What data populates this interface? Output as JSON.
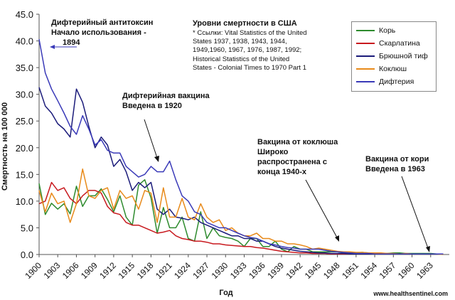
{
  "chart_data": {
    "type": "line",
    "title": "Уровни смертности в США",
    "xlabel": "Год",
    "ylabel": "Смертность на 100 000",
    "ylim": [
      0,
      45
    ],
    "yticks": [
      "0.0",
      "5.0",
      "10.0",
      "15.0",
      "20.0",
      "25.0",
      "30.0",
      "35.0",
      "40.0",
      "45.0"
    ],
    "xlim": [
      1900,
      1966
    ],
    "xticks": [
      "1900",
      "1903",
      "1906",
      "1909",
      "1912",
      "1915",
      "1918",
      "1921",
      "1924",
      "1927",
      "1930",
      "1933",
      "1936",
      "1939",
      "1942",
      "1945",
      "1948",
      "1951",
      "1954",
      "1957",
      "1960",
      "1963"
    ],
    "series": [
      {
        "name": "Корь",
        "color": "#2e8b2e",
        "x": [
          1900,
          1901,
          1902,
          1903,
          1904,
          1905,
          1906,
          1907,
          1908,
          1909,
          1910,
          1911,
          1912,
          1913,
          1914,
          1915,
          1916,
          1917,
          1918,
          1919,
          1920,
          1921,
          1922,
          1923,
          1924,
          1925,
          1926,
          1927,
          1928,
          1929,
          1930,
          1931,
          1932,
          1933,
          1934,
          1935,
          1936,
          1937,
          1938,
          1939,
          1940,
          1941,
          1942,
          1943,
          1944,
          1945,
          1946,
          1947,
          1948,
          1949,
          1950,
          1951,
          1952,
          1953,
          1954,
          1955,
          1956,
          1957,
          1958,
          1959,
          1960,
          1961,
          1962,
          1963,
          1964,
          1965
        ],
        "y": [
          13.3,
          7.5,
          9.6,
          8.5,
          9.5,
          7.6,
          12.8,
          9.0,
          11.0,
          11.0,
          12.3,
          10.3,
          8.0,
          11.0,
          7.0,
          5.5,
          13.0,
          14.0,
          10.6,
          4.0,
          8.8,
          5.0,
          5.0,
          7.0,
          3.0,
          2.5,
          8.0,
          3.0,
          5.0,
          3.5,
          3.2,
          3.0,
          2.5,
          1.5,
          3.0,
          3.0,
          1.5,
          1.5,
          2.5,
          1.0,
          0.5,
          1.5,
          1.0,
          1.0,
          0.5,
          0.5,
          0.5,
          0.5,
          0.5,
          0.3,
          0.3,
          0.3,
          0.4,
          0.3,
          0.3,
          0.2,
          0.2,
          0.3,
          0.3,
          0.2,
          0.2,
          0.2,
          0.2,
          0.2,
          0.1,
          0.1
        ]
      },
      {
        "name": "Скарлатина",
        "color": "#c8191e",
        "x": [
          1900,
          1901,
          1902,
          1903,
          1904,
          1905,
          1906,
          1907,
          1908,
          1909,
          1910,
          1911,
          1912,
          1913,
          1914,
          1915,
          1916,
          1917,
          1918,
          1919,
          1920,
          1921,
          1922,
          1923,
          1924,
          1925,
          1926,
          1927,
          1928,
          1929,
          1930,
          1931,
          1932,
          1933,
          1934,
          1935,
          1936,
          1937,
          1938,
          1939,
          1940,
          1941,
          1942,
          1943,
          1944,
          1945,
          1946,
          1947,
          1948,
          1949,
          1950,
          1951,
          1952,
          1953,
          1954,
          1955,
          1956,
          1957,
          1958,
          1959,
          1960,
          1961,
          1962,
          1963,
          1964,
          1965
        ],
        "y": [
          9.5,
          10.0,
          13.5,
          12.0,
          12.5,
          10.5,
          9.5,
          11.0,
          12.0,
          12.0,
          11.5,
          9.0,
          7.8,
          7.5,
          6.0,
          5.5,
          5.5,
          5.0,
          4.5,
          4.0,
          4.2,
          4.5,
          3.5,
          3.0,
          2.8,
          2.5,
          2.5,
          2.3,
          2.0,
          2.0,
          1.8,
          1.7,
          1.6,
          1.5,
          1.5,
          1.3,
          1.2,
          1.0,
          0.8,
          0.6,
          0.5,
          0.4,
          0.3,
          0.3,
          0.2,
          0.2,
          0.2,
          0.1,
          0.1,
          0.1,
          0.1,
          0.1,
          0.1,
          0.1,
          0.1,
          0.1,
          0.1,
          0.1,
          0.1,
          0.1,
          0.1,
          0.1,
          0.1,
          0.1,
          0.1,
          0.1
        ]
      },
      {
        "name": "Брюшной тиф",
        "color": "#1b1b7a",
        "x": [
          1900,
          1901,
          1902,
          1903,
          1904,
          1905,
          1906,
          1907,
          1908,
          1909,
          1910,
          1911,
          1912,
          1913,
          1914,
          1915,
          1916,
          1917,
          1918,
          1919,
          1920,
          1921,
          1922,
          1923,
          1924,
          1925,
          1926,
          1927,
          1928,
          1929,
          1930,
          1931,
          1932,
          1933,
          1934,
          1935,
          1936,
          1937,
          1938,
          1939,
          1940,
          1941,
          1942,
          1943,
          1944,
          1945,
          1946,
          1947,
          1948,
          1949,
          1950,
          1951,
          1952,
          1953,
          1954,
          1955,
          1956,
          1957,
          1958,
          1959,
          1960,
          1961,
          1962,
          1963,
          1964,
          1965
        ],
        "y": [
          31.3,
          27.8,
          26.5,
          24.5,
          23.5,
          22.0,
          31.0,
          28.5,
          24.0,
          20.0,
          22.0,
          20.5,
          16.5,
          17.8,
          15.5,
          12.0,
          13.5,
          12.5,
          13.5,
          8.5,
          7.5,
          8.5,
          7.0,
          6.8,
          6.5,
          7.0,
          6.0,
          5.5,
          5.0,
          4.5,
          4.0,
          3.5,
          3.5,
          3.0,
          3.0,
          2.5,
          2.5,
          2.0,
          1.5,
          1.2,
          1.0,
          0.8,
          0.6,
          0.5,
          0.4,
          0.3,
          0.3,
          0.2,
          0.2,
          0.2,
          0.1,
          0.1,
          0.1,
          0.1,
          0.1,
          0.1,
          0.1,
          0.1,
          0.1,
          0.1,
          0.1,
          0.1,
          0.1,
          0.1,
          0.1,
          0.1
        ]
      },
      {
        "name": "Коклюш",
        "color": "#e88a1a",
        "x": [
          1900,
          1901,
          1902,
          1903,
          1904,
          1905,
          1906,
          1907,
          1908,
          1909,
          1910,
          1911,
          1912,
          1913,
          1914,
          1915,
          1916,
          1917,
          1918,
          1919,
          1920,
          1921,
          1922,
          1923,
          1924,
          1925,
          1926,
          1927,
          1928,
          1929,
          1930,
          1931,
          1932,
          1933,
          1934,
          1935,
          1936,
          1937,
          1938,
          1939,
          1940,
          1941,
          1942,
          1943,
          1944,
          1945,
          1946,
          1947,
          1948,
          1949,
          1950,
          1951,
          1952,
          1953,
          1954,
          1955,
          1956,
          1957,
          1958,
          1959,
          1960,
          1961,
          1962,
          1963,
          1964,
          1965
        ],
        "y": [
          12.0,
          8.0,
          11.5,
          9.5,
          10.0,
          6.0,
          9.5,
          16.0,
          11.0,
          10.5,
          12.0,
          12.5,
          8.5,
          12.0,
          10.5,
          11.0,
          8.5,
          12.0,
          11.5,
          6.0,
          12.5,
          7.0,
          7.0,
          10.5,
          7.0,
          6.5,
          9.5,
          7.0,
          6.0,
          6.5,
          4.5,
          5.0,
          4.0,
          3.5,
          3.5,
          4.0,
          3.0,
          3.0,
          2.5,
          2.5,
          2.0,
          2.0,
          1.8,
          1.5,
          1.0,
          1.2,
          1.0,
          0.8,
          0.6,
          0.5,
          0.5,
          0.4,
          0.4,
          0.3,
          0.3,
          0.3,
          0.2,
          0.2,
          0.1,
          0.2,
          0.1,
          0.1,
          0.1,
          0.1,
          0.1,
          0.0
        ]
      },
      {
        "name": "Дифтерия",
        "color": "#3a3ab8",
        "x": [
          1900,
          1901,
          1902,
          1903,
          1904,
          1905,
          1906,
          1907,
          1908,
          1909,
          1910,
          1911,
          1912,
          1913,
          1914,
          1915,
          1916,
          1917,
          1918,
          1919,
          1920,
          1921,
          1922,
          1923,
          1924,
          1925,
          1926,
          1927,
          1928,
          1929,
          1930,
          1931,
          1932,
          1933,
          1934,
          1935,
          1936,
          1937,
          1938,
          1939,
          1940,
          1941,
          1942,
          1943,
          1944,
          1945,
          1946,
          1947,
          1948,
          1949,
          1950,
          1951,
          1952,
          1953,
          1954,
          1955,
          1956,
          1957,
          1958,
          1959,
          1960,
          1961,
          1962,
          1963,
          1964,
          1965
        ],
        "y": [
          40.3,
          34.0,
          31.0,
          28.8,
          26.5,
          24.0,
          22.5,
          26.0,
          23.5,
          20.5,
          21.5,
          19.5,
          19.0,
          19.0,
          16.5,
          15.5,
          14.5,
          15.0,
          16.5,
          15.5,
          15.5,
          17.5,
          14.0,
          11.0,
          10.0,
          8.0,
          7.5,
          6.0,
          5.5,
          5.0,
          5.0,
          4.5,
          4.0,
          3.5,
          3.2,
          3.0,
          2.5,
          2.0,
          1.8,
          1.5,
          1.3,
          1.2,
          1.0,
          1.0,
          1.0,
          1.0,
          0.8,
          0.6,
          0.5,
          0.4,
          0.3,
          0.2,
          0.2,
          0.2,
          0.1,
          0.1,
          0.1,
          0.1,
          0.1,
          0.1,
          0.1,
          0.1,
          0.1,
          0.1,
          0.1,
          0.1
        ]
      }
    ],
    "legend": "top-right"
  },
  "annotations": {
    "antitoxin_line1": "Дифтерийный антитоксин",
    "antitoxin_line2": "Начало использования -",
    "antitoxin_year": "1894",
    "diph_vaccine_line1": "Дифтерийная вакцина",
    "diph_vaccine_line2": "Введена в 1920",
    "pertussis_line1": "Вакцина от коклюша",
    "pertussis_line2": "Широко",
    "pertussis_line3": "распространена с",
    "pertussis_line4": "конца 1940-х",
    "measles_line1": "Вакцина от кори",
    "measles_line2": "Введена в 1963"
  },
  "sources": {
    "line1": "* Ссылки: Vital Statistics of the United",
    "line2": "States 1937, 1938, 1943, 1944,",
    "line3": "1949,1960, 1967, 1976, 1987, 1992;",
    "line4": "Historical Statistics of the United",
    "line5": "States - Colonial Times to 1970 Part 1"
  },
  "watermark": "www.healthsentinel.com"
}
